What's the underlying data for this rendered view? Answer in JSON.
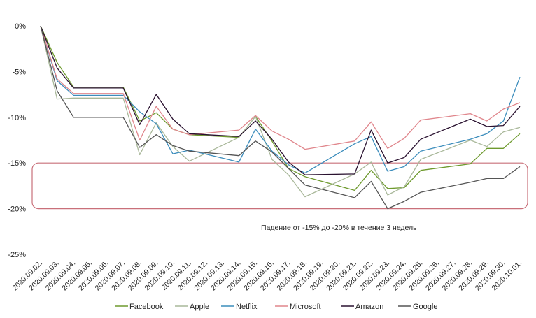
{
  "chart_data": {
    "type": "line",
    "title": "",
    "xlabel": "",
    "ylabel": "",
    "ylim": [
      -25,
      0
    ],
    "yticks": [
      {
        "value": 0,
        "label": "0%"
      },
      {
        "value": -5,
        "label": "-5%"
      },
      {
        "value": -10,
        "label": "-10%"
      },
      {
        "value": -15,
        "label": "-15%"
      },
      {
        "value": -20,
        "label": "-20%"
      },
      {
        "value": -25,
        "label": "-25%"
      }
    ],
    "x_labels": [
      "2020.09.02.",
      "2020.09.03.",
      "2020.09.04.",
      "2020.09.05.",
      "2020.09.06.",
      "2020.09.07.",
      "2020.09.08.",
      "2020.09.09.",
      "2020.09.10.",
      "2020.09.11.",
      "2020.09.12.",
      "2020.09.13.",
      "2020.09.14.",
      "2020.09.15.",
      "2020.09.16.",
      "2020.09.17.",
      "2020.09.18.",
      "2020.09.19.",
      "2020.09.20.",
      "2020.09.21.",
      "2020.09.22.",
      "2020.09.23.",
      "2020.09.24.",
      "2020.09.25.",
      "2020.09.26.",
      "2020.09.27.",
      "2020.09.28.",
      "2020.09.29.",
      "2020.09.30.",
      "2020.10.01."
    ],
    "grid": false,
    "legend_position": "bottom",
    "series": [
      {
        "name": "Facebook",
        "color": "#6e9a2e",
        "points": [
          [
            "2020.09.02.",
            0
          ],
          [
            "2020.09.03.",
            -4
          ],
          [
            "2020.09.04.",
            -6.7
          ],
          [
            "2020.09.07.",
            -6.7
          ],
          [
            "2020.09.08.",
            -10.4
          ],
          [
            "2020.09.09.",
            -9.5
          ],
          [
            "2020.09.10.",
            -11.3
          ],
          [
            "2020.09.11.",
            -11.9
          ],
          [
            "2020.09.14.",
            -12.2
          ],
          [
            "2020.09.15.",
            -9.9
          ],
          [
            "2020.09.16.",
            -12.6
          ],
          [
            "2020.09.17.",
            -15.6
          ],
          [
            "2020.09.18.",
            -16.5
          ],
          [
            "2020.09.21.",
            -18
          ],
          [
            "2020.09.22.",
            -15.8
          ],
          [
            "2020.09.23.",
            -17.8
          ],
          [
            "2020.09.24.",
            -17.7
          ],
          [
            "2020.09.25.",
            -15.8
          ],
          [
            "2020.09.28.",
            -15.1
          ],
          [
            "2020.09.29.",
            -13.4
          ],
          [
            "2020.09.30.",
            -13.4
          ],
          [
            "2020.10.01.",
            -11.8
          ]
        ]
      },
      {
        "name": "Apple",
        "color": "#a9b89a",
        "points": [
          [
            "2020.09.02.",
            0
          ],
          [
            "2020.09.03.",
            -8
          ],
          [
            "2020.09.04.",
            -7.9
          ],
          [
            "2020.09.07.",
            -7.9
          ],
          [
            "2020.09.08.",
            -14.1
          ],
          [
            "2020.09.09.",
            -10.6
          ],
          [
            "2020.09.10.",
            -13.2
          ],
          [
            "2020.09.11.",
            -14.8
          ],
          [
            "2020.09.14.",
            -12.2
          ],
          [
            "2020.09.15.",
            -9.9
          ],
          [
            "2020.09.16.",
            -14.6
          ],
          [
            "2020.09.17.",
            -16.3
          ],
          [
            "2020.09.18.",
            -18.7
          ],
          [
            "2020.09.21.",
            -16.2
          ],
          [
            "2020.09.22.",
            -14.9
          ],
          [
            "2020.09.23.",
            -18.5
          ],
          [
            "2020.09.24.",
            -17.6
          ],
          [
            "2020.09.25.",
            -14.6
          ],
          [
            "2020.09.28.",
            -12.5
          ],
          [
            "2020.09.29.",
            -13.2
          ],
          [
            "2020.09.30.",
            -11.6
          ],
          [
            "2020.10.01.",
            -11.1
          ]
        ]
      },
      {
        "name": "Netflix",
        "color": "#3c8dbc",
        "points": [
          [
            "2020.09.02.",
            0
          ],
          [
            "2020.09.03.",
            -6
          ],
          [
            "2020.09.04.",
            -7.6
          ],
          [
            "2020.09.07.",
            -7.6
          ],
          [
            "2020.09.08.",
            -9.4
          ],
          [
            "2020.09.09.",
            -10.7
          ],
          [
            "2020.09.10.",
            -14
          ],
          [
            "2020.09.11.",
            -13.6
          ],
          [
            "2020.09.14.",
            -14.9
          ],
          [
            "2020.09.15.",
            -11.3
          ],
          [
            "2020.09.16.",
            -13.7
          ],
          [
            "2020.09.17.",
            -15.2
          ],
          [
            "2020.09.18.",
            -16.1
          ],
          [
            "2020.09.21.",
            -12.9
          ],
          [
            "2020.09.22.",
            -12.1
          ],
          [
            "2020.09.23.",
            -15.9
          ],
          [
            "2020.09.24.",
            -15.4
          ],
          [
            "2020.09.25.",
            -13.7
          ],
          [
            "2020.09.28.",
            -12.4
          ],
          [
            "2020.09.29.",
            -11.8
          ],
          [
            "2020.09.30.",
            -10.4
          ],
          [
            "2020.10.01.",
            -5.6
          ]
        ]
      },
      {
        "name": "Microsoft",
        "color": "#e0868c",
        "points": [
          [
            "2020.09.02.",
            0
          ],
          [
            "2020.09.03.",
            -5.8
          ],
          [
            "2020.09.04.",
            -7.4
          ],
          [
            "2020.09.07.",
            -7.4
          ],
          [
            "2020.09.08.",
            -12.5
          ],
          [
            "2020.09.09.",
            -8.8
          ],
          [
            "2020.09.10.",
            -11.3
          ],
          [
            "2020.09.11.",
            -11.9
          ],
          [
            "2020.09.14.",
            -11.4
          ],
          [
            "2020.09.15.",
            -9.8
          ],
          [
            "2020.09.16.",
            -11.5
          ],
          [
            "2020.09.17.",
            -12.4
          ],
          [
            "2020.09.18.",
            -13.5
          ],
          [
            "2020.09.21.",
            -12.6
          ],
          [
            "2020.09.22.",
            -10.5
          ],
          [
            "2020.09.23.",
            -13.4
          ],
          [
            "2020.09.24.",
            -12.3
          ],
          [
            "2020.09.25.",
            -10.3
          ],
          [
            "2020.09.28.",
            -9.6
          ],
          [
            "2020.09.29.",
            -10.4
          ],
          [
            "2020.09.30.",
            -9.1
          ],
          [
            "2020.10.01.",
            -8.4
          ]
        ]
      },
      {
        "name": "Amazon",
        "color": "#2a1230",
        "points": [
          [
            "2020.09.02.",
            0
          ],
          [
            "2020.09.03.",
            -4.6
          ],
          [
            "2020.09.04.",
            -6.8
          ],
          [
            "2020.09.07.",
            -6.8
          ],
          [
            "2020.09.08.",
            -10.8
          ],
          [
            "2020.09.09.",
            -7.5
          ],
          [
            "2020.09.10.",
            -10.2
          ],
          [
            "2020.09.11.",
            -11.8
          ],
          [
            "2020.09.14.",
            -12.1
          ],
          [
            "2020.09.15.",
            -10.4
          ],
          [
            "2020.09.16.",
            -12.4
          ],
          [
            "2020.09.17.",
            -14.9
          ],
          [
            "2020.09.18.",
            -16.3
          ],
          [
            "2020.09.21.",
            -16.2
          ],
          [
            "2020.09.22.",
            -11.4
          ],
          [
            "2020.09.23.",
            -15
          ],
          [
            "2020.09.24.",
            -14.4
          ],
          [
            "2020.09.25.",
            -12.4
          ],
          [
            "2020.09.28.",
            -10.2
          ],
          [
            "2020.09.29.",
            -11
          ],
          [
            "2020.09.30.",
            -10.9
          ],
          [
            "2020.10.01.",
            -8.8
          ]
        ]
      },
      {
        "name": "Google",
        "color": "#555555",
        "points": [
          [
            "2020.09.02.",
            0
          ],
          [
            "2020.09.03.",
            -7.1
          ],
          [
            "2020.09.04.",
            -10
          ],
          [
            "2020.09.07.",
            -10
          ],
          [
            "2020.09.08.",
            -13.3
          ],
          [
            "2020.09.09.",
            -11.9
          ],
          [
            "2020.09.10.",
            -13.1
          ],
          [
            "2020.09.11.",
            -13.7
          ],
          [
            "2020.09.14.",
            -14.2
          ],
          [
            "2020.09.15.",
            -12.6
          ],
          [
            "2020.09.16.",
            -13.8
          ],
          [
            "2020.09.17.",
            -15.6
          ],
          [
            "2020.09.18.",
            -17.4
          ],
          [
            "2020.09.21.",
            -18.8
          ],
          [
            "2020.09.22.",
            -17
          ],
          [
            "2020.09.23.",
            -20
          ],
          [
            "2020.09.24.",
            -19.2
          ],
          [
            "2020.09.25.",
            -18.2
          ],
          [
            "2020.09.28.",
            -17.1
          ],
          [
            "2020.09.29.",
            -16.7
          ],
          [
            "2020.09.30.",
            -16.7
          ],
          [
            "2020.10.01.",
            -15.4
          ]
        ]
      }
    ],
    "highlight_band": {
      "y_from": -15,
      "y_to": -20,
      "color": "#c9707a"
    },
    "annotation": "Падение от -15% до  -20% в течение 3 недель"
  }
}
